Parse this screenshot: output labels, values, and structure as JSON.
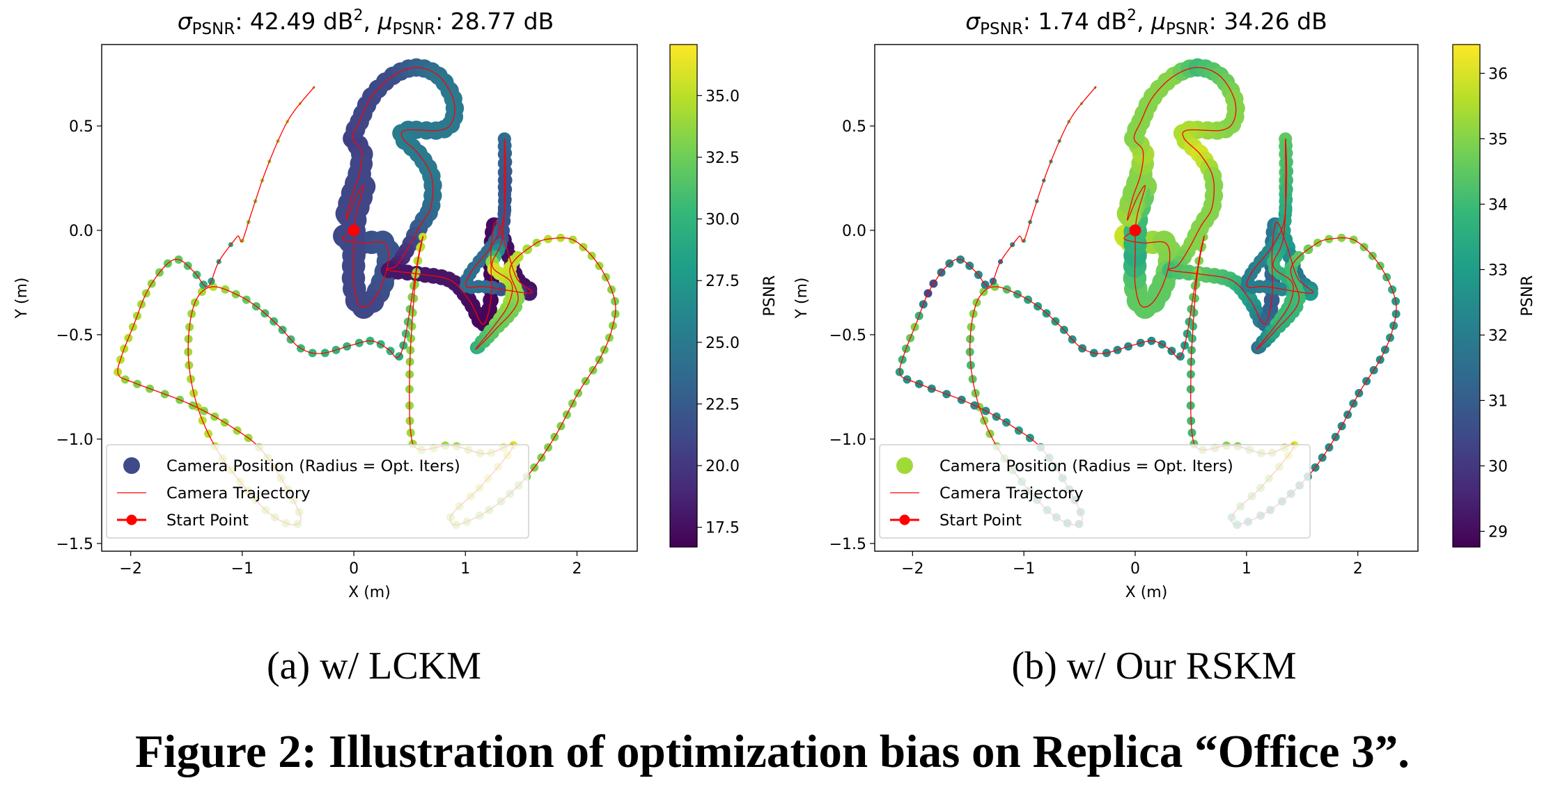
{
  "figure": {
    "subcaptions": [
      "(a)  w/ LCKM",
      "(b)  w/ Our RSKM"
    ],
    "caption": "Figure 2: Illustration of optimization bias on Replica “Office 3”."
  },
  "chart_data": {
    "type": "scatter",
    "start_point": [
      0,
      0
    ],
    "trajectory_xy": [
      [
        0,
        0
      ],
      [
        -0.1,
        -0.04
      ],
      [
        0.07,
        -0.06
      ],
      [
        0.27,
        -0.06
      ],
      [
        0.31,
        -0.14
      ],
      [
        0.25,
        -0.26
      ],
      [
        0.15,
        -0.35
      ],
      [
        0.05,
        -0.36
      ],
      [
        0,
        -0.26
      ],
      [
        0,
        -0.12
      ],
      [
        0.01,
        0.05
      ],
      [
        0.09,
        0.21
      ],
      [
        0.02,
        0.16
      ],
      [
        -0.07,
        0.05
      ],
      [
        -0.02,
        0.16
      ],
      [
        0.05,
        0.27
      ],
      [
        0.07,
        0.38
      ],
      [
        -0.01,
        0.44
      ],
      [
        0.05,
        0.52
      ],
      [
        0.16,
        0.64
      ],
      [
        0.35,
        0.74
      ],
      [
        0.56,
        0.78
      ],
      [
        0.76,
        0.74
      ],
      [
        0.89,
        0.63
      ],
      [
        0.89,
        0.53
      ],
      [
        0.78,
        0.48
      ],
      [
        0.47,
        0.48
      ],
      [
        0.44,
        0.44
      ],
      [
        0.59,
        0.36
      ],
      [
        0.7,
        0.25
      ],
      [
        0.69,
        0.11
      ],
      [
        0.59,
        0.02
      ],
      [
        0.48,
        -0.09
      ],
      [
        0.38,
        -0.17
      ],
      [
        0.3,
        -0.19
      ],
      [
        0.59,
        -0.21
      ],
      [
        0.87,
        -0.24
      ],
      [
        1.04,
        -0.34
      ],
      [
        1.16,
        -0.45
      ],
      [
        1.23,
        -0.32
      ],
      [
        1.23,
        -0.1
      ],
      [
        1.27,
        0.04
      ],
      [
        1.36,
        -0.07
      ],
      [
        1.46,
        -0.23
      ],
      [
        1.59,
        -0.3
      ],
      [
        1.18,
        -0.27
      ],
      [
        1.01,
        -0.27
      ],
      [
        1.05,
        -0.2
      ],
      [
        1.24,
        -0.07
      ],
      [
        1.34,
        0.05
      ],
      [
        1.35,
        0.24
      ],
      [
        1.35,
        0.44
      ],
      [
        1.36,
        0.24
      ],
      [
        1.33,
        -0.04
      ],
      [
        1.24,
        -0.17
      ],
      [
        1.41,
        -0.25
      ],
      [
        1.39,
        -0.35
      ],
      [
        1.27,
        -0.45
      ],
      [
        1.09,
        -0.57
      ],
      [
        1.26,
        -0.48
      ],
      [
        1.47,
        -0.34
      ],
      [
        1.4,
        -0.18
      ],
      [
        1.61,
        -0.07
      ],
      [
        1.77,
        -0.04
      ],
      [
        1.98,
        -0.05
      ],
      [
        2.2,
        -0.17
      ],
      [
        2.34,
        -0.34
      ],
      [
        2.31,
        -0.48
      ],
      [
        2.2,
        -0.62
      ],
      [
        2.01,
        -0.78
      ],
      [
        1.8,
        -0.99
      ],
      [
        1.55,
        -1.18
      ],
      [
        1.24,
        -1.33
      ],
      [
        0.93,
        -1.41
      ],
      [
        0.88,
        -1.36
      ],
      [
        1.15,
        -1.22
      ],
      [
        1.43,
        -1.03
      ],
      [
        1.18,
        -1.07
      ],
      [
        0.87,
        -1.03
      ],
      [
        0.59,
        -1.05
      ],
      [
        0.51,
        -0.97
      ],
      [
        0.5,
        -0.69
      ],
      [
        0.52,
        -0.46
      ],
      [
        0.56,
        -0.2
      ],
      [
        0.62,
        -0.03
      ],
      [
        0.58,
        -0.12
      ],
      [
        0.52,
        -0.32
      ],
      [
        0.45,
        -0.54
      ],
      [
        0.39,
        -0.61
      ],
      [
        0.31,
        -0.57
      ],
      [
        0.16,
        -0.53
      ],
      [
        -0.02,
        -0.55
      ],
      [
        -0.3,
        -0.59
      ],
      [
        -0.49,
        -0.56
      ],
      [
        -0.67,
        -0.46
      ],
      [
        -0.86,
        -0.37
      ],
      [
        -1.04,
        -0.31
      ],
      [
        -1.26,
        -0.27
      ],
      [
        -1.4,
        -0.32
      ],
      [
        -1.47,
        -0.45
      ],
      [
        -1.48,
        -0.63
      ],
      [
        -1.41,
        -0.83
      ],
      [
        -1.26,
        -1.02
      ],
      [
        -1.04,
        -1.19
      ],
      [
        -0.77,
        -1.35
      ],
      [
        -0.55,
        -1.41
      ],
      [
        -0.49,
        -1.35
      ],
      [
        -0.8,
        -1.07
      ],
      [
        -1.1,
        -0.94
      ],
      [
        -1.48,
        -0.83
      ],
      [
        -1.97,
        -0.73
      ],
      [
        -2.11,
        -0.69
      ],
      [
        -2.08,
        -0.6
      ],
      [
        -1.97,
        -0.45
      ],
      [
        -1.85,
        -0.29
      ],
      [
        -1.69,
        -0.17
      ],
      [
        -1.57,
        -0.14
      ],
      [
        -1.43,
        -0.2
      ],
      [
        -1.31,
        -0.27
      ],
      [
        -1.21,
        -0.15
      ],
      [
        -1.06,
        -0.04
      ],
      [
        -1.03,
        -0.03
      ],
      [
        -1.0,
        -0.05
      ],
      [
        -0.92,
        0.08
      ],
      [
        -0.8,
        0.27
      ],
      [
        -0.67,
        0.44
      ],
      [
        -0.55,
        0.56
      ],
      [
        -0.35,
        0.69
      ]
    ],
    "opt_iters_radius_rel": [
      2.8,
      2.8,
      2.8,
      2.8,
      2.8,
      2.8,
      2.8,
      2.8,
      2.8,
      2.8,
      2.8,
      2.8,
      2.8,
      2.8,
      2.8,
      2.8,
      2.6,
      2.4,
      2.3,
      2.3,
      2.2,
      2.2,
      2.2,
      2.2,
      2.2,
      2.2,
      2.2,
      2.2,
      2.2,
      2.2,
      2.2,
      2.2,
      1.9,
      1.9,
      1.9,
      1.9,
      1.9,
      1.9,
      1.9,
      1.9,
      1.9,
      1.9,
      1.9,
      1.9,
      1.9,
      1.6,
      1.6,
      1.6,
      1.6,
      1.6,
      1.6,
      1.6,
      1.6,
      1.6,
      1.6,
      1.6,
      1.6,
      1.6,
      1.6,
      1.6,
      1.6,
      1.6,
      1.0,
      1.0,
      1.0,
      1.0,
      1.0,
      1.0,
      1.0,
      1.0,
      1.0,
      1.0,
      1.0,
      1.0,
      1.0,
      1.0,
      1.0,
      1.0,
      1.0,
      1.0,
      1.0,
      1.0,
      1.0,
      1.0,
      1.0,
      1.0,
      1.0,
      1.0,
      1.0,
      1.0,
      1.0,
      1.0,
      1.0,
      1.0,
      1.0,
      1.0,
      1.0,
      1.0,
      1.0,
      1.0,
      1.0,
      1.0,
      1.0,
      1.0,
      1.0,
      1.0,
      1.0,
      1.0,
      1.0,
      1.0,
      1.0,
      1.0,
      1.0,
      1.0,
      1.0,
      1.0,
      1.0,
      1.0,
      1.0,
      0.6,
      0.6,
      0.6,
      0.5,
      0.5,
      0.45,
      0.45,
      0.4,
      0.3
    ],
    "panels": [
      {
        "title": {
          "sigma": "σ",
          "sigma_sub": "PSNR",
          "sigma_value": ": 42.49 dB",
          "sigma_sup": "2",
          "sep": ", ",
          "mu": "μ",
          "mu_sub": "PSNR",
          "mu_value": ": 28.77 dB"
        },
        "xlabel": "X (m)",
        "ylabel": "Y (m)",
        "xlim": [
          -2.26,
          2.54
        ],
        "ylim": [
          -1.537,
          0.89
        ],
        "xticks": [
          -2,
          -1,
          0,
          1,
          2
        ],
        "xtick_labels": [
          "−2",
          "−1",
          "0",
          "1",
          "2"
        ],
        "yticks": [
          -1.5,
          -1.0,
          -0.5,
          0.0,
          0.5
        ],
        "ytick_labels": [
          "−1.5",
          "−1.0",
          "−0.5",
          "0.0",
          "0.5"
        ],
        "grid": false,
        "colorbar": {
          "label": "PSNR",
          "range": [
            16.7,
            37.07
          ],
          "colormap": "viridis",
          "ticks": [
            17.5,
            20.0,
            22.5,
            25.0,
            27.5,
            30.0,
            32.5,
            35.0
          ],
          "tick_labels": [
            "17.5",
            "20.0",
            "22.5",
            "25.0",
            "27.5",
            "30.0",
            "32.5",
            "35.0"
          ]
        },
        "legend": {
          "placement": "lower-left",
          "entries": [
            "Camera Position (Radius = Opt. Iters)",
            "Camera Trajectory",
            "Start Point"
          ],
          "marker_color": "#3e4a89"
        },
        "trajectory_color": "#ff0000",
        "psnr": [
          21,
          21,
          21.5,
          22,
          22,
          22,
          21,
          21,
          21,
          21,
          21,
          21,
          21,
          21,
          21,
          21,
          21,
          20.5,
          21,
          21,
          21.5,
          23,
          24.5,
          25,
          25,
          25,
          25,
          25.5,
          25,
          25,
          24,
          23,
          20,
          18.5,
          18,
          18,
          18,
          17.5,
          17,
          17,
          17,
          17.5,
          17.5,
          17.5,
          17.5,
          24,
          24,
          24,
          24,
          23,
          23,
          24,
          22,
          22,
          36,
          35,
          34,
          33,
          29,
          32,
          33,
          35.5,
          34,
          35,
          34.5,
          34,
          33,
          33.5,
          33,
          33,
          33,
          33,
          33,
          34,
          34,
          35,
          36,
          34,
          34,
          34,
          34,
          33.5,
          33.5,
          33.5,
          35.5,
          35,
          33,
          30,
          29,
          30,
          30,
          30,
          30,
          30.5,
          30.5,
          31,
          33,
          35,
          34,
          34,
          34,
          35,
          35,
          35,
          34,
          34,
          34,
          34,
          34,
          33,
          33,
          35,
          35,
          34.5,
          34,
          32,
          32,
          31,
          29,
          28,
          30,
          35,
          34,
          33,
          34,
          34,
          35,
          33
        ]
      },
      {
        "title": {
          "sigma": "σ",
          "sigma_sub": "PSNR",
          "sigma_value": ": 1.74 dB",
          "sigma_sup": "2",
          "sep": ", ",
          "mu": "μ",
          "mu_sub": "PSNR",
          "mu_value": ": 34.26 dB"
        },
        "xlabel": "X (m)",
        "ylabel": "Y (m)",
        "xlim": [
          -2.34,
          2.54
        ],
        "ylim": [
          -1.537,
          0.89
        ],
        "xticks": [
          -2,
          -1,
          0,
          1,
          2
        ],
        "xtick_labels": [
          "−2",
          "−1",
          "0",
          "1",
          "2"
        ],
        "yticks": [
          -1.5,
          -1.0,
          -0.5,
          0.0,
          0.5
        ],
        "ytick_labels": [
          "−1.5",
          "−1.0",
          "−0.5",
          "0.0",
          "0.5"
        ],
        "grid": false,
        "colorbar": {
          "label": "PSNR",
          "range": [
            28.76,
            36.44
          ],
          "colormap": "viridis",
          "ticks": [
            29,
            30,
            31,
            32,
            33,
            34,
            35,
            36
          ],
          "tick_labels": [
            "29",
            "30",
            "31",
            "32",
            "33",
            "34",
            "35",
            "36"
          ]
        },
        "legend": {
          "placement": "lower-left",
          "entries": [
            "Camera Position (Radius = Opt. Iters)",
            "Camera Trajectory",
            "Start Point"
          ],
          "marker_color": "#a0da39"
        },
        "trajectory_color": "#ff0000",
        "psnr": [
          35.5,
          36,
          35.5,
          35,
          35,
          34.5,
          34.5,
          34.5,
          34.5,
          33.5,
          34,
          35,
          34.5,
          35.5,
          35,
          35,
          35.5,
          35,
          35,
          35,
          35,
          34,
          34.5,
          35,
          35,
          35,
          35.5,
          35.5,
          36,
          35,
          35,
          35,
          35,
          34.5,
          34,
          34.5,
          34,
          33,
          31.5,
          31,
          31.5,
          32,
          33,
          31.5,
          33,
          32,
          32,
          32,
          32.5,
          32.5,
          34.5,
          34.5,
          34,
          33,
          34,
          33.5,
          34,
          34,
          31,
          33.5,
          34,
          34,
          35,
          35,
          35,
          34.5,
          33,
          33,
          32.5,
          32.5,
          32.5,
          32.5,
          32.5,
          33,
          34,
          35,
          36,
          35,
          35,
          35,
          34,
          34,
          34,
          35,
          35,
          35,
          34.5,
          33,
          32.5,
          32.5,
          32.5,
          32.5,
          32.5,
          32.5,
          33,
          33,
          33.5,
          35,
          35,
          35,
          34,
          35,
          35,
          34,
          33,
          32,
          32.5,
          33,
          33,
          32.5,
          32.5,
          33,
          34,
          35,
          30,
          32.5,
          32.5,
          32.5,
          32,
          31.5,
          33,
          34,
          34,
          33,
          33,
          34,
          35,
          34
        ]
      }
    ]
  }
}
